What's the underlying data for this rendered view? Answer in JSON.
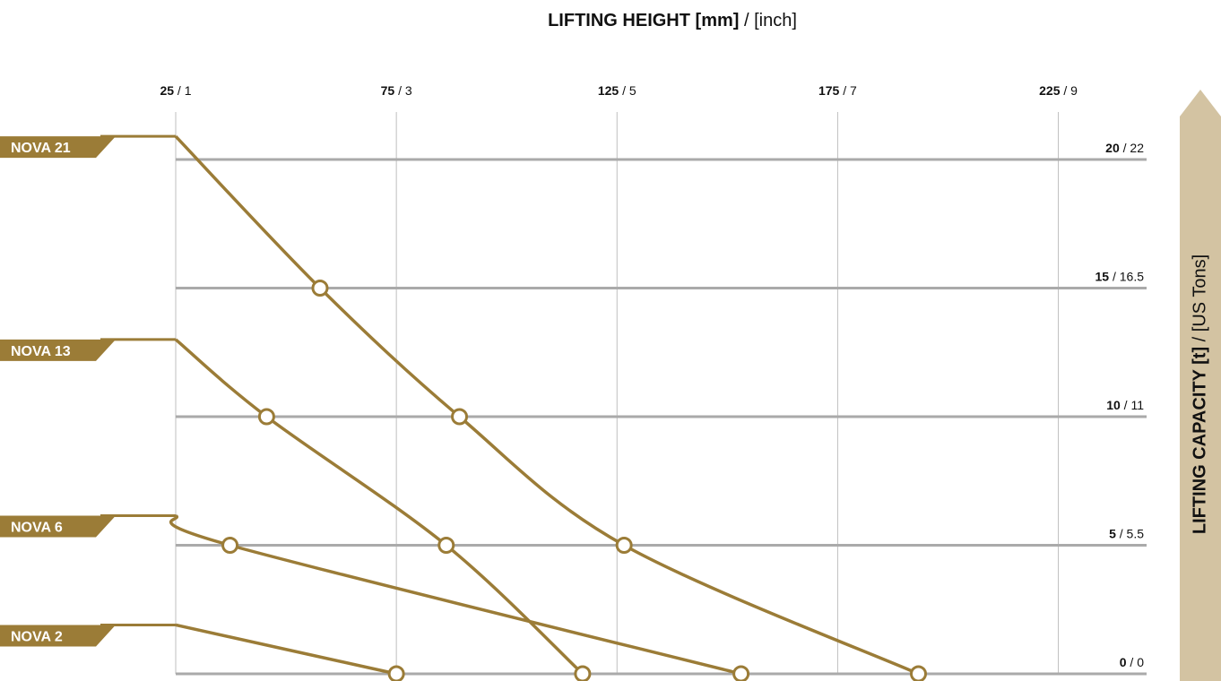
{
  "x_axis_title": {
    "bold": "LIFTING HEIGHT [mm]",
    "sep": " / ",
    "normal": "[inch]"
  },
  "y_axis_title": {
    "bold": "LIFTING CAPACITY [t]",
    "sep": " / ",
    "normal": "[US Tons]"
  },
  "colors": {
    "curve": "#9b7c37",
    "label_fill": "#9b7c37",
    "grid": "#aaaaaa",
    "arrow": "#d3c3a2",
    "marker_fill": "#ffffff"
  },
  "chart_data": {
    "type": "line",
    "xlabel": "LIFTING HEIGHT [mm] / [inch]",
    "ylabel": "LIFTING CAPACITY [t] / [US Tons]",
    "x_ticks": [
      {
        "mm": "25",
        "inch": "1"
      },
      {
        "mm": "75",
        "inch": "3"
      },
      {
        "mm": "125",
        "inch": "5"
      },
      {
        "mm": "175",
        "inch": "7"
      },
      {
        "mm": "225",
        "inch": "9"
      }
    ],
    "y_ticks": [
      {
        "t": "20",
        "us": "22"
      },
      {
        "t": "15",
        "us": "16.5"
      },
      {
        "t": "10",
        "us": "11"
      },
      {
        "t": "5",
        "us": "5.5"
      },
      {
        "t": "0",
        "us": "0"
      }
    ],
    "xlim": [
      25,
      245
    ],
    "ylim": [
      0,
      20
    ],
    "grid": true,
    "series": [
      {
        "name": "NOVA 21",
        "start_capacity": 20.9,
        "points": [
          [
            25,
            20.9
          ],
          [
            57.7,
            15
          ],
          [
            89.3,
            10
          ],
          [
            126.6,
            5
          ],
          [
            193.3,
            0
          ]
        ]
      },
      {
        "name": "NOVA 13",
        "start_capacity": 13.0,
        "points": [
          [
            25,
            13.0
          ],
          [
            45.6,
            10
          ],
          [
            86.3,
            5
          ],
          [
            117.2,
            0
          ]
        ]
      },
      {
        "name": "NOVA 6",
        "start_capacity": 6.15,
        "points": [
          [
            25,
            6.15
          ],
          [
            37.3,
            5
          ],
          [
            153.1,
            0
          ]
        ]
      },
      {
        "name": "NOVA 2",
        "start_capacity": 1.9,
        "points": [
          [
            25,
            1.9
          ],
          [
            75,
            0
          ]
        ]
      }
    ]
  }
}
